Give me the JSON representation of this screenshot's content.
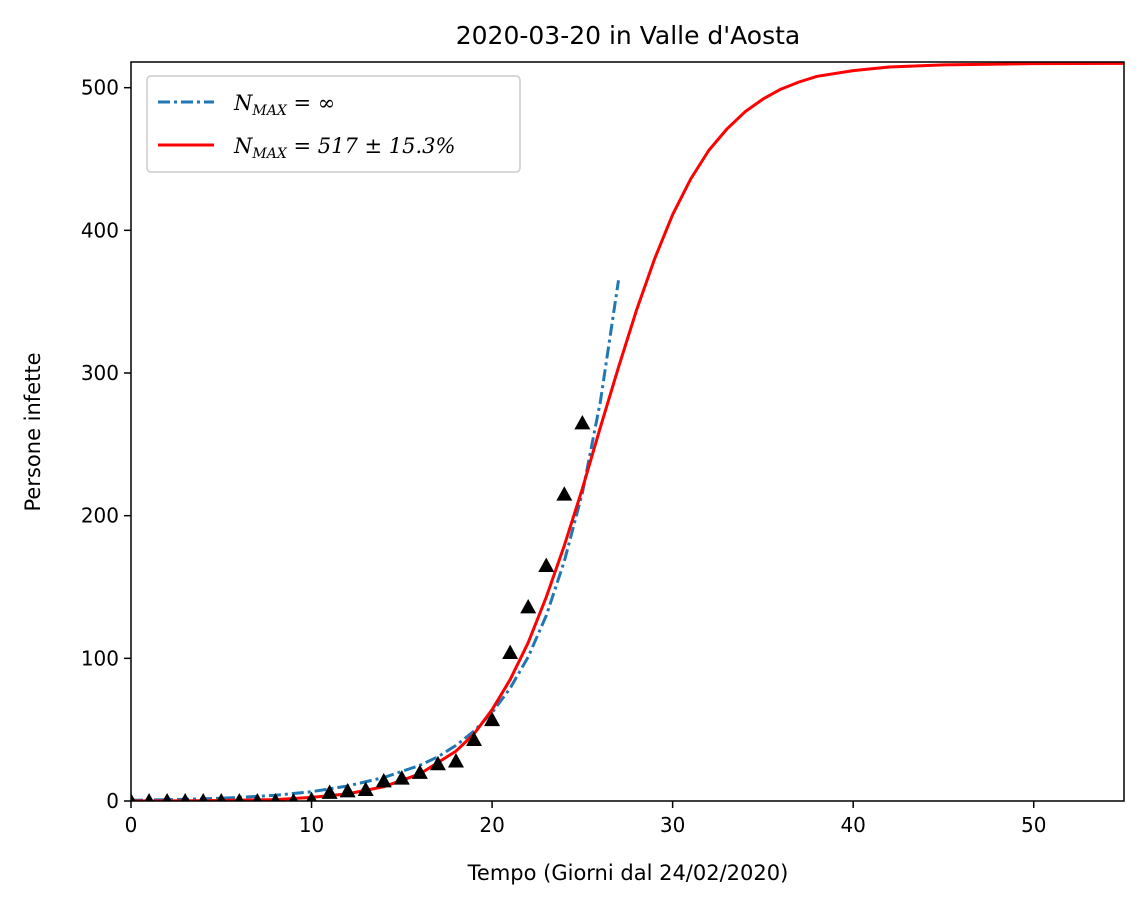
{
  "chart_data": {
    "type": "line",
    "title": "2020-03-20 in Valle d'Aosta",
    "xlabel": "Tempo (Giorni dal 24/02/2020)",
    "ylabel": "Persone infette",
    "xlim": [
      0,
      55
    ],
    "ylim": [
      0,
      518
    ],
    "xticks": [
      0,
      10,
      20,
      30,
      40,
      50
    ],
    "yticks": [
      0,
      100,
      200,
      300,
      400,
      500
    ],
    "grid": false,
    "legend_position": "top-left",
    "series": [
      {
        "name": "N_MAX = ∞",
        "kind": "exponential-fit",
        "color": "#1f77b4",
        "style": "dashdot",
        "x": [
          0,
          2,
          4,
          6,
          8,
          10,
          12,
          14,
          16,
          17,
          18,
          19,
          20,
          21,
          22,
          23,
          24,
          25,
          26,
          27
        ],
        "y": [
          0.5,
          0.9,
          1.5,
          2.5,
          4,
          6.5,
          10.5,
          16.5,
          25,
          31,
          39,
          49,
          62,
          79,
          101,
          130,
          168,
          216,
          280,
          365
        ]
      },
      {
        "name": "N_MAX = 517 ± 15.3%",
        "kind": "logistic-fit",
        "color": "#ff0000",
        "style": "solid",
        "x": [
          0,
          4,
          8,
          10,
          12,
          14,
          16,
          18,
          19,
          20,
          21,
          22,
          23,
          24,
          25,
          26,
          27,
          28,
          29,
          30,
          31,
          32,
          33,
          34,
          35,
          36,
          37,
          38,
          40,
          42,
          45,
          50,
          55
        ],
        "y": [
          0,
          0.2,
          1,
          2.5,
          5,
          10,
          19,
          35,
          47,
          64,
          85,
          111,
          143,
          179,
          219,
          262,
          304,
          344,
          380,
          411,
          436,
          456,
          471,
          483,
          492,
          499,
          504,
          508,
          512,
          514.5,
          516,
          516.9,
          517
        ]
      },
      {
        "name": "",
        "kind": "observed",
        "color": "#000000",
        "style": "triangle-markers",
        "x": [
          0,
          1,
          2,
          3,
          4,
          5,
          6,
          7,
          8,
          9,
          10,
          11,
          12,
          13,
          14,
          15,
          16,
          17,
          18,
          19,
          20,
          21,
          22,
          23,
          24,
          25
        ],
        "y": [
          0,
          0,
          0,
          0,
          0,
          0,
          0,
          0,
          0,
          0,
          1,
          6,
          7,
          8,
          14,
          16,
          20,
          26,
          28,
          43,
          57,
          104,
          136,
          165,
          215,
          265
        ]
      }
    ]
  },
  "legend": {
    "entry1": {
      "prefix": "N",
      "sub": "MAX",
      "rest": " = ∞"
    },
    "entry2": {
      "prefix": "N",
      "sub": "MAX",
      "rest": " = 517 ± 15.3%"
    }
  }
}
